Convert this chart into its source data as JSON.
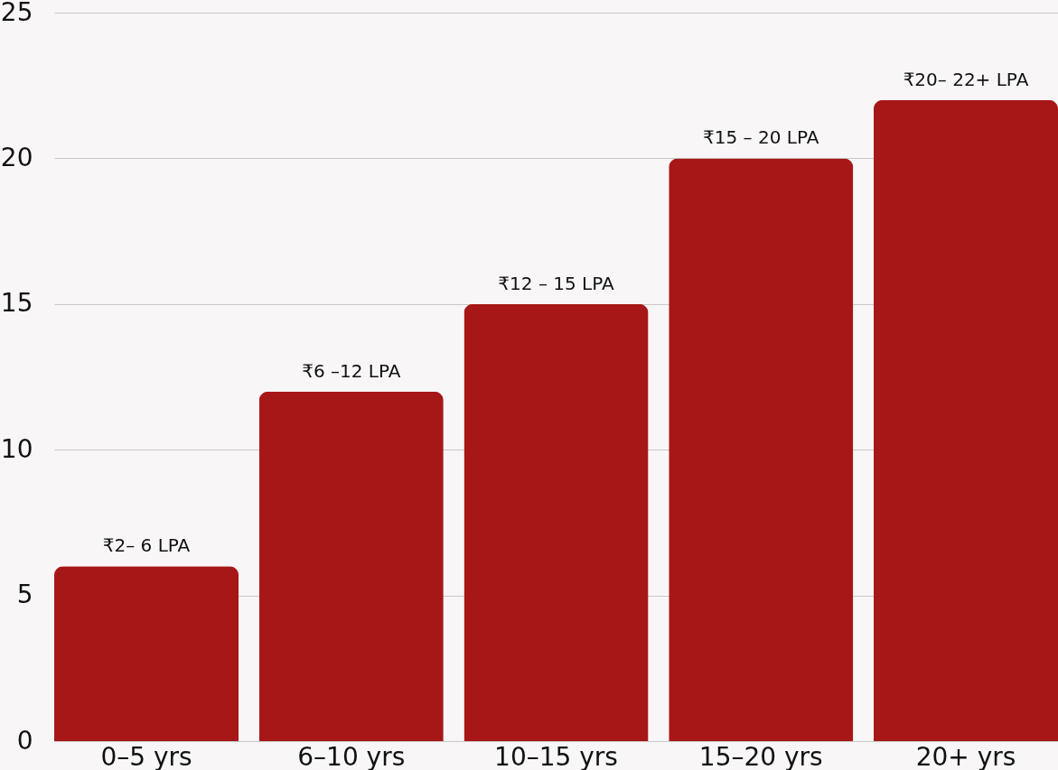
{
  "chart_data": {
    "type": "bar",
    "categories": [
      "0–5 yrs",
      "6–10 yrs",
      "10–15 yrs",
      "15–20 yrs",
      "20+ yrs"
    ],
    "values": [
      6,
      12,
      15,
      20,
      22
    ],
    "color": "#a71717",
    "value_labels": [
      "₹2– 6 LPA",
      "₹6 –12 LPA",
      "₹12 – 15 LPA",
      "₹15 – 20 LPA",
      "₹20– 22+ LPA"
    ],
    "ylim": [
      0,
      25
    ],
    "yticks": [
      0,
      5,
      10,
      15,
      20,
      25
    ],
    "grid": "y"
  }
}
